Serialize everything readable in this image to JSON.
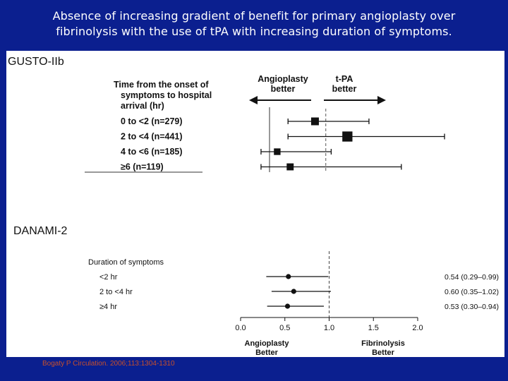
{
  "slide": {
    "title_line1": "Absence of increasing gradient of benefit for primary angioplasty over",
    "title_line2": "fibrinolysis with the use of tPA with increasing duration of symptoms.",
    "citation": "Bogaty P Circulation. 2006;113:1304-1310",
    "background_color": "#0b1f8f"
  },
  "chart_data": [
    {
      "type": "forest",
      "title": "GUSTO-IIb",
      "header": [
        "Time from the onset of",
        "symptoms to hospital",
        "arrival (hr)"
      ],
      "left_label": [
        "Angioplasty",
        "better"
      ],
      "right_label": [
        "t-PA",
        "better"
      ],
      "reference_value": 1.0,
      "axis_range": [
        0.25,
        2.25
      ],
      "rows": [
        {
          "label": "0 to <2 (n=279)",
          "estimate": 0.9,
          "ci_low": 0.65,
          "ci_high": 1.4,
          "marker_weight": 1.0
        },
        {
          "label": "2 to <4 (n=441)",
          "estimate": 1.2,
          "ci_low": 0.65,
          "ci_high": 2.1,
          "marker_weight": 1.3
        },
        {
          "label": "4 to <6 (n=185)",
          "estimate": 0.55,
          "ci_low": 0.4,
          "ci_high": 1.05,
          "marker_weight": 0.85
        },
        {
          "label": "≥6 (n=119)",
          "estimate": 0.67,
          "ci_low": 0.4,
          "ci_high": 1.7,
          "marker_weight": 0.9
        }
      ]
    },
    {
      "type": "forest",
      "title": "DANAMI-2",
      "header": "Duration of symptoms",
      "reference_value": 1.0,
      "xlim": [
        0.0,
        2.0
      ],
      "xticks": [
        "0.0",
        "0.5",
        "1.0",
        "1.5",
        "2.0"
      ],
      "xtick_values": [
        0.0,
        0.5,
        1.0,
        1.5,
        2.0
      ],
      "left_label": [
        "Angioplasty",
        "Better"
      ],
      "right_label": [
        "Fibrinolysis",
        "Better"
      ],
      "rows": [
        {
          "label": "<2 hr",
          "estimate": 0.54,
          "ci_low": 0.29,
          "ci_high": 0.99,
          "text": "0.54 (0.29–0.99)"
        },
        {
          "label": "2 to <4 hr",
          "estimate": 0.6,
          "ci_low": 0.35,
          "ci_high": 1.02,
          "text": "0.60 (0.35–1.02)"
        },
        {
          "label": "≥4 hr",
          "estimate": 0.53,
          "ci_low": 0.3,
          "ci_high": 0.94,
          "text": "0.53 (0.30–0.94)"
        }
      ]
    }
  ]
}
